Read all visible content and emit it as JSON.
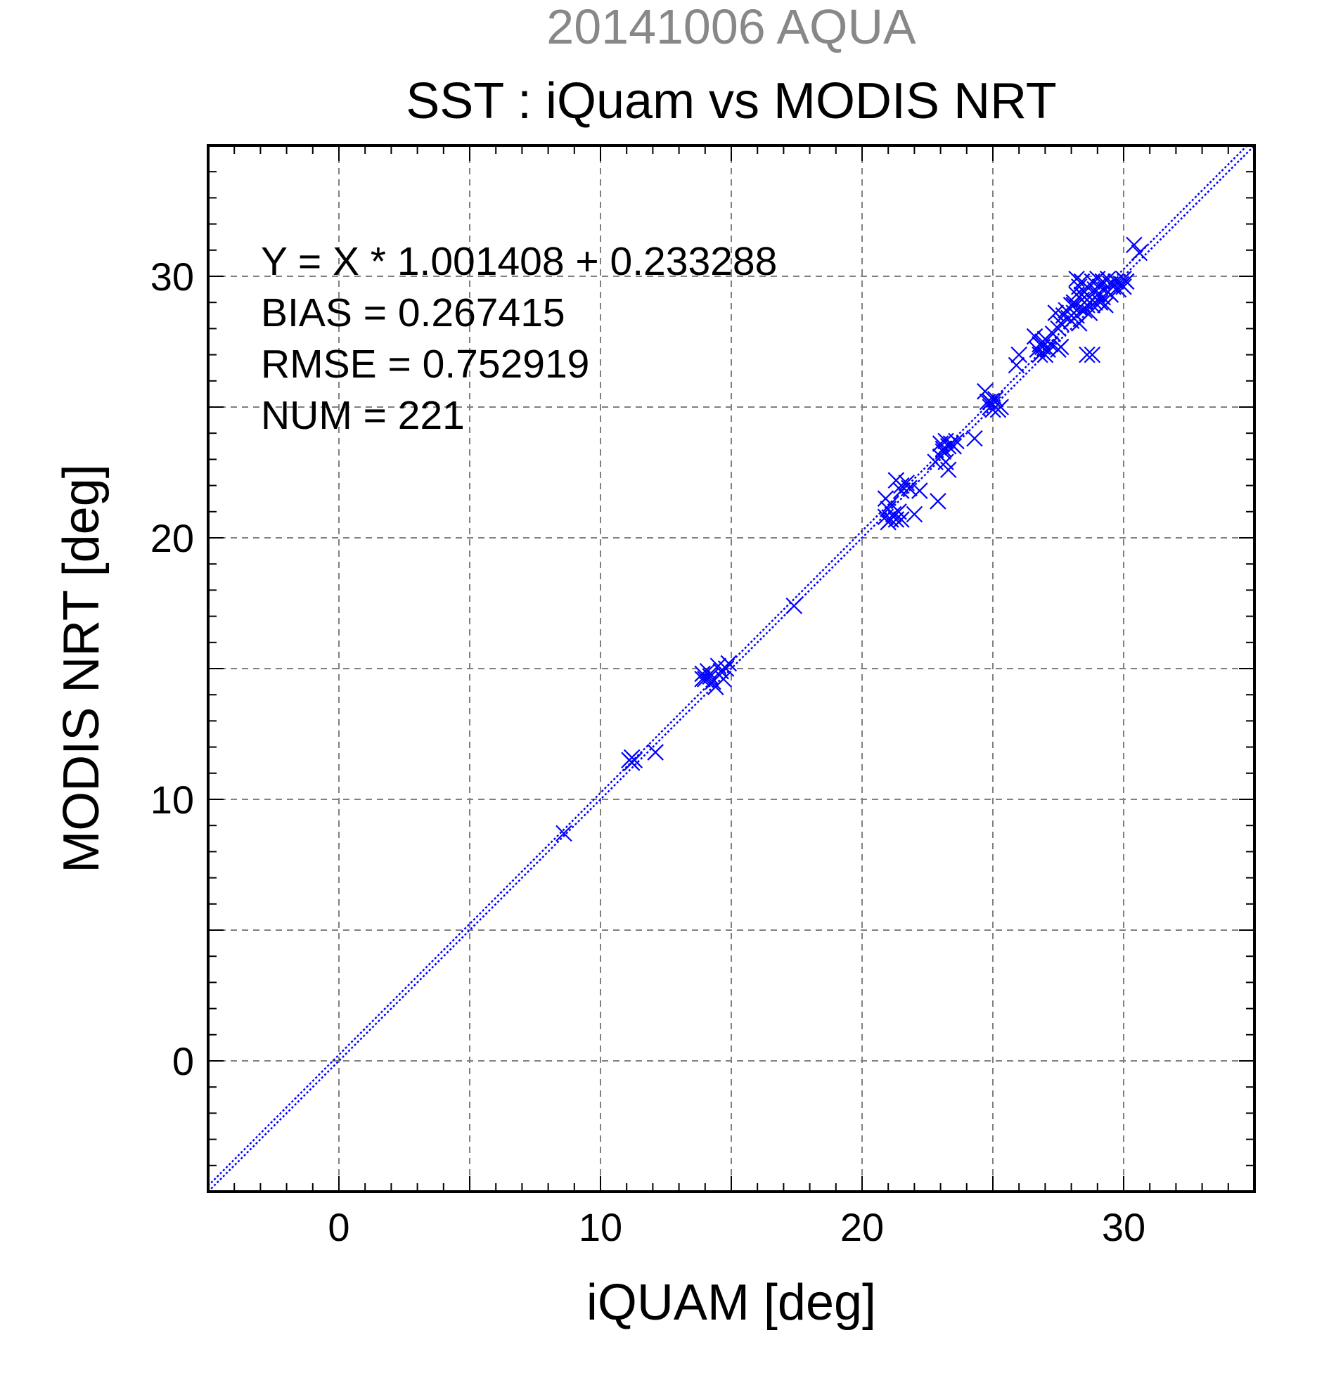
{
  "chart_data": {
    "type": "scatter",
    "supertitle": "20141006 AQUA",
    "title": "SST : iQuam vs MODIS NRT",
    "xlabel": "iQUAM [deg]",
    "ylabel": "MODIS NRT [deg]",
    "xlim": [
      -5,
      35
    ],
    "ylim": [
      -5,
      35
    ],
    "x_ticks": [
      0,
      10,
      20,
      30
    ],
    "y_ticks": [
      0,
      10,
      20,
      30
    ],
    "grid": true,
    "grid_step": 5,
    "marker": "x",
    "annotations": [
      "Y = X * 1.001408 + 0.233288",
      "BIAS = 0.267415",
      "RMSE = 0.752919",
      "NUM = 221"
    ],
    "lines": [
      {
        "type": "identity",
        "style": "dotted",
        "slope": 1,
        "intercept": 0
      },
      {
        "type": "regression",
        "style": "dotted",
        "slope": 1.001408,
        "intercept": 0.233288
      }
    ],
    "colors": {
      "markers": "#0000ff",
      "lines": "#0000ff",
      "supertitle": "#888888",
      "grid": "#808080",
      "text": "#000000"
    },
    "points": [
      [
        8.6,
        8.7
      ],
      [
        11.1,
        11.5
      ],
      [
        11.2,
        11.6
      ],
      [
        11.3,
        11.5
      ],
      [
        11.2,
        11.4
      ],
      [
        12.1,
        11.8
      ],
      [
        13.9,
        14.8
      ],
      [
        14.0,
        14.6
      ],
      [
        14.1,
        14.9
      ],
      [
        14.2,
        14.7
      ],
      [
        14.3,
        14.5
      ],
      [
        14.4,
        14.3
      ],
      [
        14.5,
        15.1
      ],
      [
        14.6,
        14.9
      ],
      [
        14.7,
        14.6
      ],
      [
        14.8,
        15.0
      ],
      [
        14.9,
        15.2
      ],
      [
        13.9,
        14.6
      ],
      [
        17.4,
        17.4
      ],
      [
        20.9,
        21.5
      ],
      [
        20.9,
        20.8
      ],
      [
        21.0,
        21.1
      ],
      [
        21.1,
        20.7
      ],
      [
        21.2,
        20.9
      ],
      [
        21.3,
        20.7
      ],
      [
        21.4,
        21.0
      ],
      [
        21.0,
        20.6
      ],
      [
        21.1,
        21.3
      ],
      [
        21.5,
        20.7
      ],
      [
        21.3,
        22.2
      ],
      [
        21.5,
        22.0
      ],
      [
        21.7,
        22.1
      ],
      [
        21.8,
        21.9
      ],
      [
        21.5,
        21.8
      ],
      [
        22.0,
        20.9
      ],
      [
        22.2,
        21.8
      ],
      [
        22.8,
        22.9
      ],
      [
        22.9,
        21.4
      ],
      [
        23.0,
        23.1
      ],
      [
        23.0,
        23.6
      ],
      [
        23.1,
        23.4
      ],
      [
        23.2,
        23.7
      ],
      [
        23.3,
        23.5
      ],
      [
        23.4,
        23.6
      ],
      [
        23.1,
        23.3
      ],
      [
        23.3,
        22.6
      ],
      [
        23.5,
        23.5
      ],
      [
        23.2,
        22.9
      ],
      [
        23.6,
        23.7
      ],
      [
        24.3,
        23.8
      ],
      [
        24.7,
        25.6
      ],
      [
        24.8,
        25.2
      ],
      [
        24.9,
        25.0
      ],
      [
        25.0,
        24.9
      ],
      [
        25.1,
        25.3
      ],
      [
        25.2,
        24.9
      ],
      [
        25.3,
        25.0
      ],
      [
        24.9,
        25.2
      ],
      [
        25.0,
        25.1
      ],
      [
        25.9,
        26.6
      ],
      [
        26.0,
        27.0
      ],
      [
        26.6,
        27.7
      ],
      [
        26.7,
        27.2
      ],
      [
        26.8,
        27.4
      ],
      [
        26.9,
        27.3
      ],
      [
        27.0,
        27.6
      ],
      [
        27.1,
        27.2
      ],
      [
        27.2,
        27.4
      ],
      [
        27.0,
        27.0
      ],
      [
        26.9,
        27.5
      ],
      [
        27.3,
        27.8
      ],
      [
        27.5,
        28.0
      ],
      [
        27.5,
        27.2
      ],
      [
        27.6,
        28.2
      ],
      [
        27.7,
        28.5
      ],
      [
        27.8,
        28.7
      ],
      [
        27.9,
        28.4
      ],
      [
        28.0,
        28.9
      ],
      [
        28.0,
        28.3
      ],
      [
        28.1,
        29.0
      ],
      [
        28.1,
        28.6
      ],
      [
        28.2,
        29.3
      ],
      [
        28.2,
        28.5
      ],
      [
        28.3,
        29.6
      ],
      [
        28.3,
        28.8
      ],
      [
        28.3,
        28.2
      ],
      [
        28.4,
        29.8
      ],
      [
        28.4,
        29.1
      ],
      [
        28.5,
        29.4
      ],
      [
        28.5,
        28.7
      ],
      [
        28.6,
        29.6
      ],
      [
        28.6,
        28.9
      ],
      [
        28.6,
        27.0
      ],
      [
        28.7,
        29.2
      ],
      [
        28.7,
        28.6
      ],
      [
        28.8,
        29.8
      ],
      [
        28.8,
        28.9
      ],
      [
        28.8,
        27.0
      ],
      [
        28.9,
        29.5
      ],
      [
        28.9,
        29.0
      ],
      [
        29.0,
        29.9
      ],
      [
        29.0,
        29.3
      ],
      [
        29.1,
        29.6
      ],
      [
        29.1,
        29.0
      ],
      [
        29.2,
        29.8
      ],
      [
        29.2,
        29.2
      ],
      [
        29.3,
        29.5
      ],
      [
        29.3,
        28.9
      ],
      [
        29.4,
        29.9
      ],
      [
        29.4,
        29.4
      ],
      [
        29.5,
        29.7
      ],
      [
        29.5,
        29.3
      ],
      [
        29.6,
        29.6
      ],
      [
        29.7,
        29.8
      ],
      [
        29.8,
        29.5
      ],
      [
        29.9,
        29.7
      ],
      [
        30.0,
        29.9
      ],
      [
        30.0,
        29.6
      ],
      [
        30.1,
        29.8
      ],
      [
        30.4,
        31.2
      ],
      [
        30.6,
        30.9
      ],
      [
        28.1,
        28.9
      ],
      [
        28.4,
        29.3
      ],
      [
        28.2,
        29.9
      ],
      [
        27.6,
        27.3
      ],
      [
        27.4,
        28.6
      ],
      [
        26.8,
        27.0
      ]
    ]
  }
}
